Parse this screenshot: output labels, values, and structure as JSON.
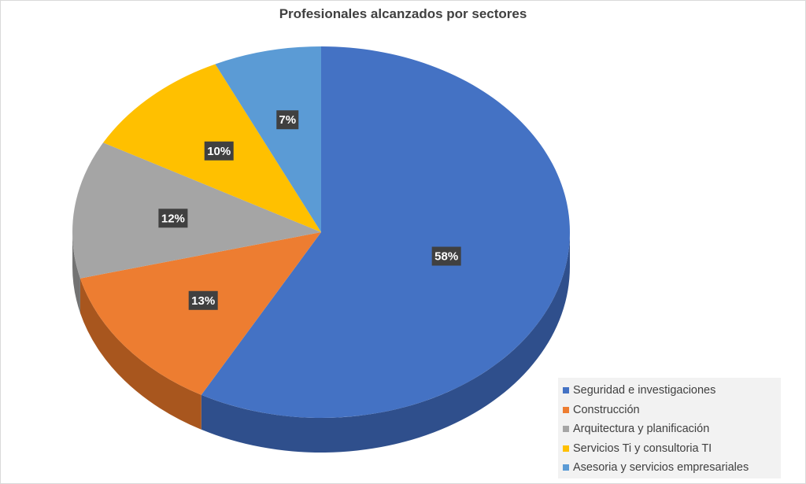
{
  "chart_data": {
    "type": "pie",
    "title": "Profesionales alcanzados por sectores",
    "categories": [
      "Seguridad e investigaciones",
      "Construcción",
      "Arquitectura y planificación",
      "Servicios Ti y consultoria TI",
      "Asesoria y servicios empresariales"
    ],
    "values": [
      58,
      13,
      12,
      10,
      7
    ],
    "labels": [
      "58%",
      "13%",
      "12%",
      "10%",
      "7%"
    ],
    "colors": [
      "#4472c4",
      "#ed7d31",
      "#a5a5a5",
      "#ffc000",
      "#5b9bd5"
    ],
    "side_colors": [
      "#2f4f8c",
      "#a8561e",
      "#737373",
      "#b38800",
      "#3f6e99"
    ],
    "legend_position": "bottom-right",
    "style": "3d"
  }
}
